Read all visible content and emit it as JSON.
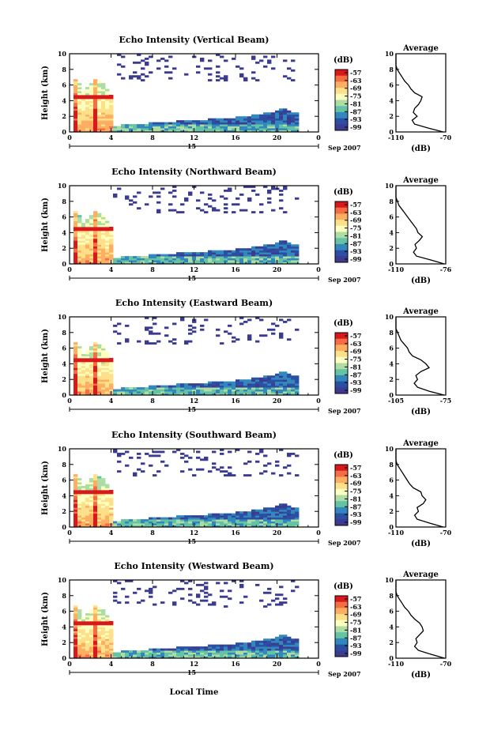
{
  "figure": {
    "xlabel": "Local Time",
    "day_label": "15",
    "month_label": "Sep 2007",
    "ylabel": "Height (km)",
    "colorbar_unit": "(dB)",
    "colorbar_ticks": [
      "-57",
      "-63",
      "-69",
      "-75",
      "-81",
      "-87",
      "-93",
      "-99"
    ],
    "colorbar_colors": [
      "#d7191c",
      "#f46d43",
      "#fdae61",
      "#fee08b",
      "#ffffbf",
      "#abdda4",
      "#66c2a5",
      "#3288bd",
      "#2b4fa3",
      "#3b3b8f"
    ],
    "avg_title": "Average",
    "avg_xlabel": "(dB)"
  },
  "chart_data": [
    {
      "type": "heatmap",
      "title": "Echo Intensity (Vertical Beam)",
      "xlabel": "Local Time",
      "ylabel": "Height (km)",
      "xlim": [
        0,
        24
      ],
      "ylim": [
        0,
        10
      ],
      "xticks": [
        "0",
        "4",
        "8",
        "12",
        "16",
        "20",
        "0"
      ],
      "yticks": [
        "0",
        "2",
        "4",
        "6",
        "8",
        "10"
      ],
      "profile": {
        "title": "Average",
        "xlabel": "(dB)",
        "xlim": [
          -110,
          -70
        ],
        "xticks": [
          "-110",
          "-70"
        ],
        "height_km": [
          0,
          0.5,
          1,
          1.5,
          2,
          2.5,
          3,
          3.5,
          4,
          4.5,
          5,
          5.5,
          6,
          6.5,
          7,
          7.5,
          8,
          8.5,
          9,
          9.5,
          10
        ],
        "values_db": [
          -72,
          -84,
          -95,
          -97,
          -93,
          -96,
          -95,
          -92,
          -90,
          -89,
          -95,
          -98,
          -100,
          -103,
          -105,
          -107,
          -109,
          -110,
          -110,
          -110,
          -110
        ]
      }
    },
    {
      "type": "heatmap",
      "title": "Echo Intensity (Northward Beam)",
      "xlabel": "Local Time",
      "ylabel": "Height (km)",
      "xlim": [
        0,
        24
      ],
      "ylim": [
        0,
        10
      ],
      "xticks": [
        "0",
        "4",
        "8",
        "12",
        "16",
        "20",
        "0"
      ],
      "yticks": [
        "0",
        "2",
        "4",
        "6",
        "8",
        "10"
      ],
      "profile": {
        "title": "Average",
        "xlabel": "(dB)",
        "xlim": [
          -110,
          -76
        ],
        "xticks": [
          "-110",
          "-76"
        ],
        "height_km": [
          0,
          0.5,
          1,
          1.5,
          2,
          2.5,
          3,
          3.5,
          4,
          4.5,
          5,
          5.5,
          6,
          6.5,
          7,
          7.5,
          8,
          8.5,
          9,
          9.5,
          10
        ],
        "values_db": [
          -77,
          -86,
          -96,
          -98,
          -96,
          -97,
          -94,
          -92,
          -95,
          -96,
          -98,
          -100,
          -102,
          -104,
          -106,
          -108,
          -109,
          -110,
          -110,
          -110,
          -110
        ]
      }
    },
    {
      "type": "heatmap",
      "title": "Echo Intensity (Eastward Beam)",
      "xlabel": "Local Time",
      "ylabel": "Height (km)",
      "xlim": [
        0,
        24
      ],
      "ylim": [
        0,
        10
      ],
      "xticks": [
        "0",
        "4",
        "8",
        "12",
        "16",
        "20",
        "0"
      ],
      "yticks": [
        "0",
        "2",
        "4",
        "6",
        "8",
        "10"
      ],
      "profile": {
        "title": "Average",
        "xlabel": "(dB)",
        "xlim": [
          -105,
          -75
        ],
        "xticks": [
          "-105",
          "-75"
        ],
        "height_km": [
          0,
          0.5,
          1,
          1.5,
          2,
          2.5,
          3,
          3.5,
          4,
          4.5,
          5,
          5.5,
          6,
          6.5,
          7,
          7.5,
          8,
          8.5,
          9,
          9.5,
          10
        ],
        "values_db": [
          -76,
          -85,
          -92,
          -94,
          -92,
          -93,
          -90,
          -85,
          -87,
          -90,
          -95,
          -97,
          -98,
          -100,
          -102,
          -103,
          -104,
          -105,
          -105,
          -105,
          -105
        ]
      }
    },
    {
      "type": "heatmap",
      "title": "Echo Intensity (Southward Beam)",
      "xlabel": "Local Time",
      "ylabel": "Height (km)",
      "xlim": [
        0,
        24
      ],
      "ylim": [
        0,
        10
      ],
      "xticks": [
        "0",
        "4",
        "8",
        "12",
        "16",
        "20",
        "0"
      ],
      "yticks": [
        "0",
        "2",
        "4",
        "6",
        "8",
        "10"
      ],
      "profile": {
        "title": "Average",
        "xlabel": "(dB)",
        "xlim": [
          -110,
          -70
        ],
        "xticks": [
          "-110",
          "-70"
        ],
        "height_km": [
          0,
          0.5,
          1,
          1.5,
          2,
          2.5,
          3,
          3.5,
          4,
          4.5,
          5,
          5.5,
          6,
          6.5,
          7,
          7.5,
          8,
          8.5,
          9,
          9.5,
          10
        ],
        "values_db": [
          -72,
          -83,
          -93,
          -95,
          -92,
          -93,
          -88,
          -86,
          -89,
          -90,
          -96,
          -99,
          -101,
          -103,
          -105,
          -107,
          -109,
          -110,
          -110,
          -110,
          -110
        ]
      }
    },
    {
      "type": "heatmap",
      "title": "Echo Intensity (Westward Beam)",
      "xlabel": "Local Time",
      "ylabel": "Height (km)",
      "xlim": [
        0,
        24
      ],
      "ylim": [
        0,
        10
      ],
      "xticks": [
        "0",
        "4",
        "8",
        "12",
        "16",
        "20",
        "0"
      ],
      "yticks": [
        "0",
        "2",
        "4",
        "6",
        "8",
        "10"
      ],
      "profile": {
        "title": "Average",
        "xlabel": "(dB)",
        "xlim": [
          -110,
          -70
        ],
        "xticks": [
          "-110",
          "-70"
        ],
        "height_km": [
          0,
          0.5,
          1,
          1.5,
          2,
          2.5,
          3,
          3.5,
          4,
          4.5,
          5,
          5.5,
          6,
          6.5,
          7,
          7.5,
          8,
          8.5,
          9,
          9.5,
          10
        ],
        "values_db": [
          -71,
          -82,
          -92,
          -95,
          -93,
          -94,
          -91,
          -88,
          -89,
          -91,
          -95,
          -98,
          -100,
          -103,
          -105,
          -107,
          -109,
          -110,
          -110,
          -110,
          -110
        ]
      }
    }
  ]
}
